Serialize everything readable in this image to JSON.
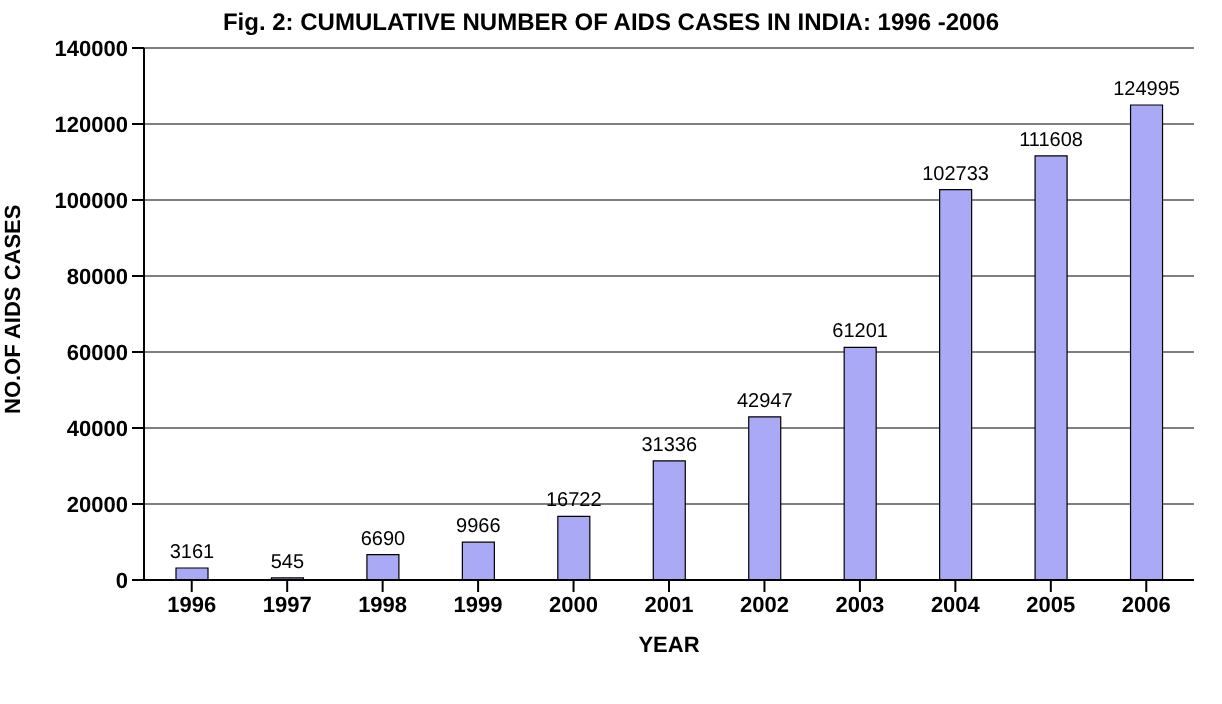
{
  "chart_data": {
    "type": "bar",
    "title": "Fig. 2: CUMULATIVE NUMBER OF AIDS CASES IN INDIA: 1996 -2006",
    "xlabel": "YEAR",
    "ylabel": "NO.OF AIDS CASES",
    "categories": [
      "1996",
      "1997",
      "1998",
      "1999",
      "2000",
      "2001",
      "2002",
      "2003",
      "2004",
      "2005",
      "2006"
    ],
    "values": [
      3161,
      545,
      6690,
      9966,
      16722,
      31336,
      42947,
      61201,
      102733,
      111608,
      124995
    ],
    "color": "#a9a9f5",
    "ylim": [
      0,
      140000
    ],
    "yticks": [
      0,
      20000,
      40000,
      60000,
      80000,
      100000,
      120000,
      140000
    ],
    "grid": "y",
    "data_labels": true
  }
}
